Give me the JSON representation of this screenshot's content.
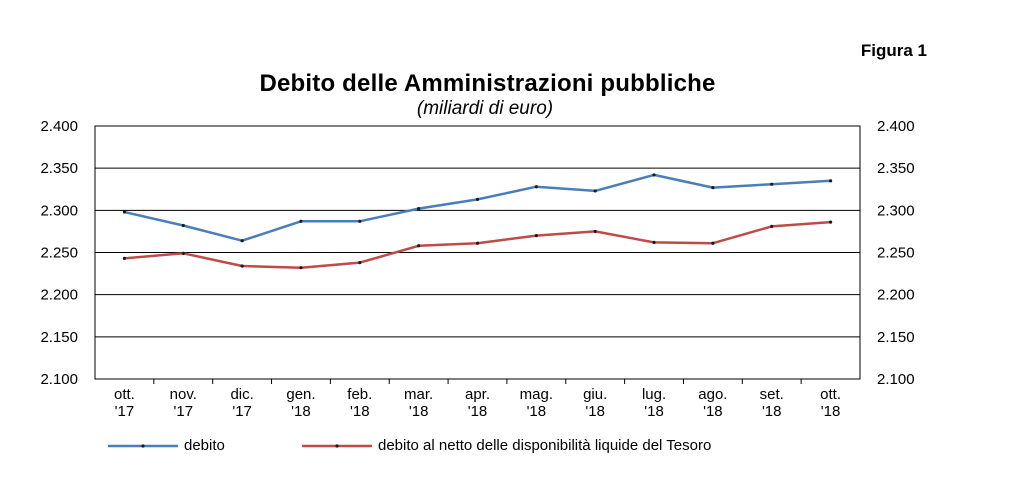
{
  "figure_label": "Figura 1",
  "chart_data": {
    "type": "line",
    "title": "Debito delle Amministrazioni pubbliche",
    "subtitle": "(miliardi di euro)",
    "categories": [
      [
        "ott.",
        "'17"
      ],
      [
        "nov.",
        "'17"
      ],
      [
        "dic.",
        "'17"
      ],
      [
        "gen.",
        "'18"
      ],
      [
        "feb.",
        "'18"
      ],
      [
        "mar.",
        "'18"
      ],
      [
        "apr.",
        "'18"
      ],
      [
        "mag.",
        "'18"
      ],
      [
        "giu.",
        "'18"
      ],
      [
        "lug.",
        "'18"
      ],
      [
        "ago.",
        "'18"
      ],
      [
        "set.",
        "'18"
      ],
      [
        "ott.",
        "'18"
      ]
    ],
    "ylim": [
      2100,
      2400
    ],
    "yticks": [
      2100,
      2150,
      2200,
      2250,
      2300,
      2350,
      2400
    ],
    "ytick_labels": [
      "2.100",
      "2.150",
      "2.200",
      "2.250",
      "2.300",
      "2.350",
      "2.400"
    ],
    "series": [
      {
        "name": "debito",
        "color": "#4a7ebb",
        "values": [
          2298,
          2282,
          2264,
          2287,
          2287,
          2302,
          2313,
          2328,
          2323,
          2342,
          2327,
          2331,
          2335
        ]
      },
      {
        "name": "debito al netto delle disponibilità liquide del Tesoro",
        "color": "#be4b48",
        "values": [
          2243,
          2249,
          2234,
          2232,
          2238,
          2258,
          2261,
          2270,
          2275,
          2262,
          2261,
          2281,
          2286
        ]
      }
    ],
    "grid": true,
    "legend": "bottom"
  }
}
